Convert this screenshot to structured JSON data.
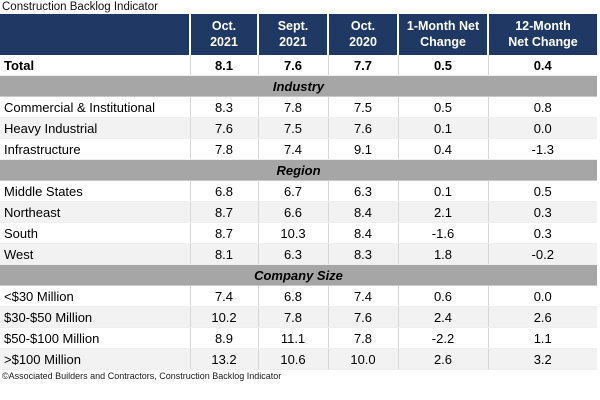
{
  "title": "Construction Backlog Indicator",
  "footer": "©Associated Builders and Contractors, Construction Backlog Indicator",
  "colors": {
    "header_bg": "#1F3864",
    "header_text": "#FFFFFF",
    "section_band_bg": "#A6A6A6",
    "row_alt_bg": "#F2F2F2",
    "cell_border": "#D6D6D6"
  },
  "header": {
    "cells": [
      {
        "line1": "Oct.",
        "line2": "2021"
      },
      {
        "line1": "Sept.",
        "line2": "2021"
      },
      {
        "line1": "Oct.",
        "line2": "2020"
      },
      {
        "line1": "1-Month Net",
        "line2": "Change"
      },
      {
        "line1": "12-Month",
        "line2": "Net Change"
      }
    ]
  },
  "chart_data": {
    "type": "table",
    "title": "Construction Backlog Indicator",
    "columns": [
      "",
      "Oct. 2021",
      "Sept. 2021",
      "Oct. 2020",
      "1-Month Net Change",
      "12-Month Net Change"
    ],
    "total_row": {
      "label": "Total",
      "values": [
        "8.1",
        "7.6",
        "7.7",
        "0.5",
        "0.4"
      ]
    },
    "sections": [
      {
        "name": "Industry",
        "rows": [
          {
            "label": "Commercial & Institutional",
            "values": [
              "8.3",
              "7.8",
              "7.5",
              "0.5",
              "0.8"
            ]
          },
          {
            "label": "Heavy Industrial",
            "values": [
              "7.6",
              "7.5",
              "7.6",
              "0.1",
              "0.0"
            ]
          },
          {
            "label": "Infrastructure",
            "values": [
              "7.8",
              "7.4",
              "9.1",
              "0.4",
              "-1.3"
            ]
          }
        ]
      },
      {
        "name": "Region",
        "rows": [
          {
            "label": "Middle States",
            "values": [
              "6.8",
              "6.7",
              "6.3",
              "0.1",
              "0.5"
            ]
          },
          {
            "label": "Northeast",
            "values": [
              "8.7",
              "6.6",
              "8.4",
              "2.1",
              "0.3"
            ]
          },
          {
            "label": "South",
            "values": [
              "8.7",
              "10.3",
              "8.4",
              "-1.6",
              "0.3"
            ]
          },
          {
            "label": "West",
            "values": [
              "8.1",
              "6.3",
              "8.3",
              "1.8",
              "-0.2"
            ]
          }
        ]
      },
      {
        "name": "Company Size",
        "rows": [
          {
            "label": "<$30 Million",
            "values": [
              "7.4",
              "6.8",
              "7.4",
              "0.6",
              "0.0"
            ]
          },
          {
            "label": "$30-$50 Million",
            "values": [
              "10.2",
              "7.8",
              "7.6",
              "2.4",
              "2.6"
            ]
          },
          {
            "label": "$50-$100 Million",
            "values": [
              "8.9",
              "11.1",
              "7.8",
              "-2.2",
              "1.1"
            ]
          },
          {
            "label": ">$100 Million",
            "values": [
              "13.2",
              "10.6",
              "10.0",
              "2.6",
              "3.2"
            ]
          }
        ]
      }
    ]
  }
}
